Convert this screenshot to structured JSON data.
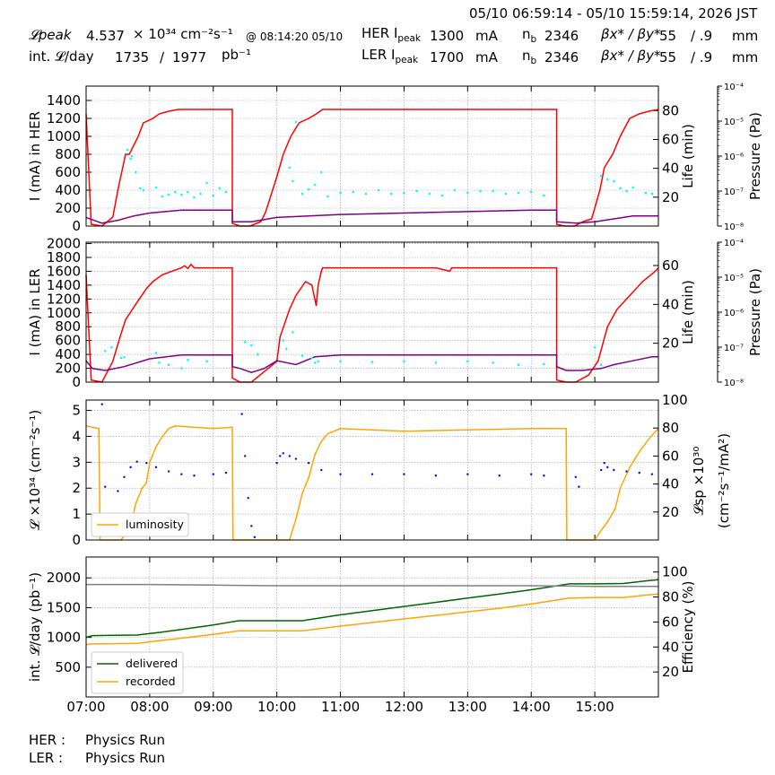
{
  "header": {
    "time_range": "05/10 06:59:14 - 05/10 15:59:14, 2026 JST",
    "lum_peak_label": "𝓛peak",
    "lum_peak_value": "4.537",
    "lum_peak_unit": "× 10³⁴ cm⁻²s⁻¹",
    "lum_peak_time": "@ 08:14:20 05/10",
    "int_lum_label": "int. 𝓛/day",
    "int_lum_value_1": "1735",
    "int_lum_sep": "/",
    "int_lum_value_2": "1977",
    "int_lum_unit": "pb⁻¹",
    "her_label": "HER I",
    "her_label_sub": "peak",
    "her_current": "1300",
    "her_unit": "mA",
    "her_nb_label": "n",
    "her_nb_sub": "b",
    "her_nb": "2346",
    "her_beta_label": "βx* / βy*",
    "her_beta_x": "55",
    "her_beta_y": "/ .9",
    "her_beta_unit": "mm",
    "ler_label": "LER I",
    "ler_label_sub": "peak",
    "ler_current": "1700",
    "ler_unit": "mA",
    "ler_nb_label": "n",
    "ler_nb_sub": "b",
    "ler_nb": "2346",
    "ler_beta_label": "βx* / βy*",
    "ler_beta_x": "55",
    "ler_beta_y": "/ .9",
    "ler_beta_unit": "mm"
  },
  "footer": {
    "her_status_label": "HER :",
    "her_status": "Physics Run",
    "ler_status_label": "LER :",
    "ler_status": "Physics Run"
  },
  "colors": {
    "current": "#ff0000",
    "life": "#800080",
    "pressure": "#00ffff",
    "luminosity": "#ffa500",
    "specific": "#0000ff",
    "delivered": "#006400",
    "recorded": "#ffa500",
    "efficiency": "#808080"
  },
  "chart_data": [
    {
      "type": "line",
      "id": "her",
      "ylabel": "I (mA) in HER",
      "y2label": "Life (min)",
      "y3label": "Pressure (Pa)",
      "ylim": [
        0,
        1560
      ],
      "y2lim": [
        0,
        97
      ],
      "yticks": [
        0,
        200,
        400,
        600,
        800,
        1000,
        1200,
        1400
      ],
      "y2ticks": [
        20,
        40,
        60,
        80
      ],
      "y3ticks": [
        "10⁻⁸",
        "10⁻⁷",
        "10⁻⁶",
        "10⁻⁵",
        "10⁻⁴"
      ],
      "series": [
        {
          "role": "current",
          "axis": "y",
          "x": [
            7.0,
            7.08,
            7.25,
            7.42,
            7.5,
            7.62,
            7.68,
            7.82,
            7.9,
            8.05,
            8.15,
            8.3,
            8.45,
            8.5,
            9.3,
            9.3,
            9.42,
            9.58,
            9.75,
            9.82,
            10.0,
            10.1,
            10.22,
            10.35,
            10.5,
            10.62,
            10.72,
            11.0,
            12.5,
            14.4,
            14.4,
            14.52,
            14.68,
            14.82,
            14.95,
            15.08,
            15.15,
            15.28,
            15.4,
            15.55,
            15.7,
            15.85,
            16.0
          ],
          "y": [
            1250,
            20,
            0,
            100,
            400,
            800,
            800,
            1000,
            1150,
            1200,
            1250,
            1280,
            1300,
            1300,
            1300,
            30,
            0,
            0,
            50,
            150,
            550,
            800,
            1000,
            1150,
            1200,
            1250,
            1300,
            1300,
            1300,
            1300,
            20,
            0,
            0,
            50,
            80,
            400,
            650,
            800,
            1000,
            1200,
            1250,
            1280,
            1300
          ]
        },
        {
          "role": "life",
          "axis": "y2",
          "x": [
            7.0,
            7.25,
            7.5,
            7.75,
            8.0,
            8.5,
            9.0,
            9.3,
            9.3,
            9.6,
            10.0,
            11.0,
            12.0,
            13.0,
            14.0,
            14.4,
            14.4,
            14.7,
            15.0,
            15.3,
            15.6,
            16.0
          ],
          "y": [
            6,
            2,
            4,
            7,
            9,
            11,
            11,
            11,
            3,
            3,
            6,
            8,
            9,
            10,
            11,
            11,
            3,
            2,
            3,
            5,
            7,
            7
          ]
        },
        {
          "role": "pressure",
          "axis": "y3",
          "type": "scatter",
          "note": "scattered cyan pressure readings",
          "x": [
            7.65,
            7.7,
            7.72,
            7.78,
            7.85,
            7.9,
            8.1,
            8.2,
            8.3,
            8.4,
            8.5,
            8.6,
            8.7,
            8.8,
            8.9,
            9.0,
            9.1,
            9.2,
            10.2,
            10.25,
            10.3,
            10.4,
            10.5,
            10.6,
            10.7,
            10.8,
            11.0,
            11.2,
            11.4,
            11.6,
            11.8,
            12.0,
            12.2,
            12.4,
            12.6,
            12.8,
            13.0,
            13.2,
            13.4,
            13.6,
            13.8,
            14.0,
            14.2,
            15.1,
            15.2,
            15.3,
            15.4,
            15.5,
            15.6,
            15.8,
            15.9
          ],
          "y": [
            850,
            750,
            780,
            600,
            420,
            400,
            430,
            330,
            350,
            380,
            350,
            380,
            320,
            360,
            480,
            340,
            420,
            380,
            650,
            500,
            1160,
            360,
            410,
            460,
            600,
            330,
            370,
            380,
            360,
            400,
            360,
            370,
            390,
            360,
            340,
            400,
            370,
            390,
            390,
            360,
            370,
            380,
            340,
            560,
            520,
            500,
            420,
            390,
            430,
            370,
            360
          ]
        }
      ]
    },
    {
      "type": "line",
      "id": "ler",
      "ylabel": "I (mA) in LER",
      "y2label": "Life (min)",
      "y3label": "Pressure (Pa)",
      "ylim": [
        0,
        2020
      ],
      "y2lim": [
        0,
        72
      ],
      "yticks": [
        0,
        200,
        400,
        600,
        800,
        1000,
        1200,
        1400,
        1600,
        1800,
        2000
      ],
      "y2ticks": [
        20,
        40,
        60
      ],
      "y3ticks": [
        "10⁻⁸",
        "10⁻⁷",
        "10⁻⁶",
        "10⁻⁵",
        "10⁻⁴"
      ],
      "series": [
        {
          "role": "current",
          "axis": "y",
          "x": [
            7.0,
            7.08,
            7.25,
            7.42,
            7.55,
            7.62,
            7.8,
            7.95,
            8.05,
            8.2,
            8.35,
            8.5,
            8.55,
            8.6,
            8.65,
            8.7,
            9.3,
            9.3,
            9.42,
            9.6,
            9.8,
            10.0,
            10.05,
            10.2,
            10.3,
            10.45,
            10.55,
            10.62,
            10.65,
            10.7,
            10.72,
            11.0,
            12.5,
            12.72,
            12.75,
            14.4,
            14.4,
            14.55,
            14.7,
            14.9,
            15.05,
            15.2,
            15.35,
            15.55,
            15.75,
            15.95,
            16.0
          ],
          "y": [
            1550,
            30,
            0,
            300,
            700,
            900,
            1150,
            1350,
            1450,
            1550,
            1600,
            1650,
            1680,
            1640,
            1700,
            1650,
            1650,
            60,
            0,
            0,
            150,
            300,
            650,
            1050,
            1250,
            1450,
            1400,
            1100,
            1400,
            1600,
            1650,
            1650,
            1650,
            1600,
            1650,
            1650,
            30,
            0,
            0,
            100,
            300,
            800,
            1050,
            1250,
            1450,
            1600,
            1650
          ]
        },
        {
          "role": "life",
          "axis": "y2",
          "x": [
            7.0,
            7.1,
            7.3,
            7.6,
            8.0,
            8.5,
            9.3,
            9.3,
            9.42,
            9.6,
            9.8,
            10.0,
            10.3,
            10.6,
            11.0,
            11.5,
            12.0,
            12.5,
            13.0,
            13.5,
            14.0,
            14.4,
            14.4,
            14.55,
            14.8,
            15.1,
            15.3,
            15.6,
            15.9,
            16.0
          ],
          "y": [
            11,
            7,
            6,
            8,
            12,
            14,
            14,
            8,
            7,
            5,
            7,
            11,
            9,
            13,
            14,
            14,
            14,
            14,
            14,
            14,
            14,
            14,
            8,
            6,
            6,
            7,
            9,
            11,
            13,
            13
          ]
        },
        {
          "role": "pressure",
          "axis": "y3",
          "type": "scatter",
          "note": "scattered cyan pressure readings",
          "x": [
            7.3,
            7.4,
            7.55,
            7.6,
            8.1,
            8.15,
            8.3,
            8.5,
            8.6,
            8.9,
            9.5,
            9.6,
            9.7,
            10.1,
            10.15,
            10.25,
            10.4,
            10.55,
            10.6,
            10.65,
            11.0,
            11.5,
            12.0,
            12.5,
            13.0,
            13.4,
            13.8,
            14.2,
            15.0,
            15.1
          ],
          "y": [
            450,
            500,
            350,
            360,
            420,
            280,
            250,
            200,
            320,
            300,
            580,
            530,
            400,
            600,
            480,
            720,
            380,
            350,
            280,
            300,
            300,
            290,
            300,
            280,
            300,
            280,
            250,
            260,
            500,
            250
          ]
        }
      ]
    },
    {
      "type": "line",
      "id": "luminosity",
      "ylabel": "𝓛 ×10³⁴ (cm⁻²s⁻¹)",
      "y2label_1": "𝓛sp ×10³⁰",
      "y2label_2": "(cm⁻²s⁻¹/mA²)",
      "ylim": [
        0,
        5.4
      ],
      "y2lim": [
        0,
        100
      ],
      "yticks": [
        0,
        1,
        2,
        3,
        4,
        5
      ],
      "y2ticks": [
        20,
        40,
        60,
        80,
        100
      ],
      "legend": {
        "position": "lower-left",
        "entries": [
          "luminosity"
        ]
      },
      "series": [
        {
          "name": "luminosity",
          "axis": "y",
          "x": [
            7.0,
            7.2,
            7.22,
            7.55,
            7.7,
            7.78,
            7.88,
            7.95,
            8.0,
            8.1,
            8.2,
            8.3,
            8.4,
            9.0,
            9.3,
            9.31,
            10.2,
            10.3,
            10.4,
            10.5,
            10.6,
            10.7,
            10.8,
            11.0,
            12.0,
            13.0,
            14.0,
            14.55,
            14.56,
            15.0,
            15.08,
            15.2,
            15.32,
            15.4,
            15.55,
            15.7,
            15.85,
            16.0
          ],
          "y": [
            4.4,
            4.3,
            0,
            0,
            0.5,
            1.4,
            2.0,
            2.2,
            3.0,
            3.6,
            4.0,
            4.3,
            4.4,
            4.3,
            4.35,
            0,
            0,
            0.8,
            1.8,
            2.4,
            3.3,
            3.8,
            4.1,
            4.3,
            4.2,
            4.25,
            4.3,
            4.3,
            0,
            0,
            0.3,
            0.7,
            1.2,
            2.0,
            2.8,
            3.4,
            3.9,
            4.3
          ]
        },
        {
          "name": "specific luminosity",
          "axis": "y2",
          "type": "scatter",
          "x": [
            7.25,
            7.3,
            7.5,
            7.6,
            7.7,
            7.8,
            7.95,
            8.1,
            8.3,
            8.5,
            8.7,
            9.0,
            9.2,
            9.45,
            9.5,
            9.55,
            9.6,
            9.65,
            10.0,
            10.05,
            10.1,
            10.2,
            10.3,
            10.5,
            10.7,
            11.0,
            11.5,
            12.0,
            12.5,
            13.0,
            13.5,
            14.0,
            14.2,
            14.7,
            14.75,
            15.1,
            15.15,
            15.2,
            15.3,
            15.5,
            15.7,
            15.9
          ],
          "y": [
            97,
            38,
            35,
            45,
            52,
            56,
            55,
            52,
            49,
            47,
            46,
            47,
            48,
            90,
            60,
            30,
            10,
            2,
            55,
            60,
            62,
            60,
            58,
            55,
            50,
            47,
            47,
            47,
            46,
            47,
            46,
            47,
            46,
            45,
            38,
            50,
            55,
            52,
            50,
            49,
            48,
            47
          ]
        }
      ]
    },
    {
      "type": "line",
      "id": "integrated",
      "ylabel": "int. 𝓛/day (pb⁻¹)",
      "y2label": "Efficiency (%)",
      "ylim": [
        0,
        2350
      ],
      "y2lim": [
        0,
        112
      ],
      "yticks": [
        500,
        1000,
        1500,
        2000
      ],
      "y2ticks": [
        20,
        40,
        60,
        80,
        100
      ],
      "xlim": [
        7.0,
        16.0
      ],
      "xticks": [
        "07:00",
        "08:00",
        "09:00",
        "10:00",
        "11:00",
        "12:00",
        "13:00",
        "14:00",
        "15:00"
      ],
      "legend": {
        "position": "lower-left",
        "entries": [
          "delivered",
          "recorded"
        ]
      },
      "series": [
        {
          "name": "delivered",
          "axis": "y",
          "x": [
            7.0,
            7.1,
            7.8,
            8.2,
            8.6,
            9.0,
            9.4,
            10.4,
            11.0,
            11.5,
            12.0,
            12.5,
            13.0,
            13.5,
            14.0,
            14.6,
            15.0,
            15.45,
            15.8,
            16.0
          ],
          "y": [
            1000,
            1030,
            1040,
            1090,
            1150,
            1210,
            1280,
            1280,
            1380,
            1450,
            1520,
            1590,
            1660,
            1730,
            1800,
            1900,
            1900,
            1905,
            1950,
            1970
          ]
        },
        {
          "name": "recorded",
          "axis": "y",
          "x": [
            7.0,
            7.1,
            7.8,
            8.2,
            8.6,
            9.0,
            9.4,
            10.4,
            11.0,
            11.5,
            12.0,
            12.5,
            13.0,
            13.5,
            14.0,
            14.6,
            15.0,
            15.45,
            15.8,
            16.0
          ],
          "y": [
            880,
            890,
            900,
            950,
            1000,
            1050,
            1110,
            1110,
            1190,
            1250,
            1310,
            1370,
            1430,
            1490,
            1560,
            1660,
            1670,
            1670,
            1710,
            1730
          ]
        },
        {
          "name": "efficiency",
          "axis": "y2",
          "x": [
            7.0,
            8.0,
            9.0,
            10.0,
            11.0,
            12.0,
            13.0,
            14.0,
            15.0,
            16.0
          ],
          "y": [
            90,
            90,
            89.5,
            89,
            89,
            89,
            89,
            89,
            88.5,
            88.5
          ]
        }
      ]
    }
  ]
}
